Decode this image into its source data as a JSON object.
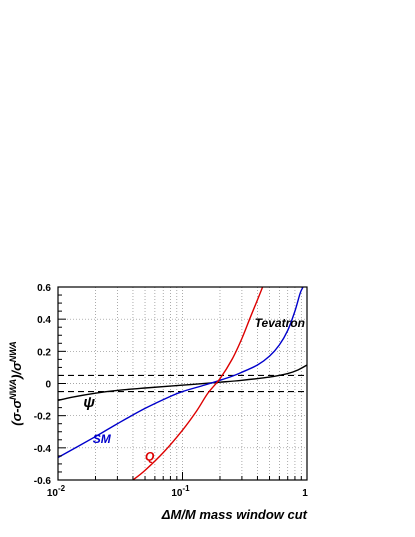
{
  "chart_data": {
    "type": "line",
    "title": "",
    "xlabel": "ΔM/M mass  window cut",
    "ylabel": "(σ-σ^NWA)/σ^NWA",
    "xscale": "log",
    "xlim": [
      0.01,
      1
    ],
    "ylim": [
      -0.6,
      0.6
    ],
    "grid": true,
    "grid_style": "dotted",
    "x_ticks": [
      {
        "value": 0.01,
        "base": "10",
        "exp": "-2"
      },
      {
        "value": 0.1,
        "base": "10",
        "exp": "-1"
      },
      {
        "value": 1,
        "base": "1",
        "exp": ""
      }
    ],
    "y_ticks": [
      "-0.6",
      "-0.4",
      "-0.2",
      "0",
      "0.2",
      "0.4",
      "0.6"
    ],
    "reference_lines": [
      {
        "y": 0.05,
        "style": "dashed",
        "color": "#000000"
      },
      {
        "y": -0.05,
        "style": "dashed",
        "color": "#000000"
      }
    ],
    "series": [
      {
        "name": "ψ",
        "color": "#000000",
        "x": [
          0.01,
          0.013,
          0.02,
          0.03,
          0.05,
          0.08,
          0.12,
          0.2,
          0.3,
          0.5,
          0.7,
          0.85,
          1.0
        ],
        "y": [
          -0.105,
          -0.085,
          -0.06,
          -0.043,
          -0.028,
          -0.016,
          -0.006,
          0.008,
          0.02,
          0.04,
          0.062,
          0.085,
          0.115
        ]
      },
      {
        "name": "SM",
        "color": "#0000cc",
        "x": [
          0.01,
          0.02,
          0.03,
          0.05,
          0.08,
          0.1,
          0.15,
          0.2,
          0.25,
          0.3,
          0.4,
          0.5,
          0.6,
          0.7,
          0.8,
          0.88,
          0.93
        ],
        "y": [
          -0.46,
          -0.33,
          -0.25,
          -0.155,
          -0.08,
          -0.05,
          -0.01,
          0.02,
          0.045,
          0.07,
          0.115,
          0.17,
          0.24,
          0.33,
          0.45,
          0.56,
          0.6
        ]
      },
      {
        "name": "Q",
        "color": "#dd0000",
        "x": [
          0.04,
          0.05,
          0.07,
          0.1,
          0.13,
          0.16,
          0.2,
          0.25,
          0.3,
          0.35,
          0.4,
          0.44
        ],
        "y": [
          -0.6,
          -0.54,
          -0.43,
          -0.29,
          -0.17,
          -0.06,
          0.03,
          0.15,
          0.28,
          0.41,
          0.52,
          0.6
        ]
      }
    ],
    "annotations": [
      {
        "text": "Tevatron",
        "x": 0.38,
        "y": 0.35,
        "color": "#000000"
      },
      {
        "text": "ψ",
        "x": 0.016,
        "y": -0.145,
        "color": "#000000"
      },
      {
        "text": "SM",
        "x": 0.019,
        "y": -0.37,
        "color": "#0000cc"
      },
      {
        "text": "Q",
        "x": 0.05,
        "y": -0.48,
        "color": "#dd0000"
      }
    ]
  }
}
